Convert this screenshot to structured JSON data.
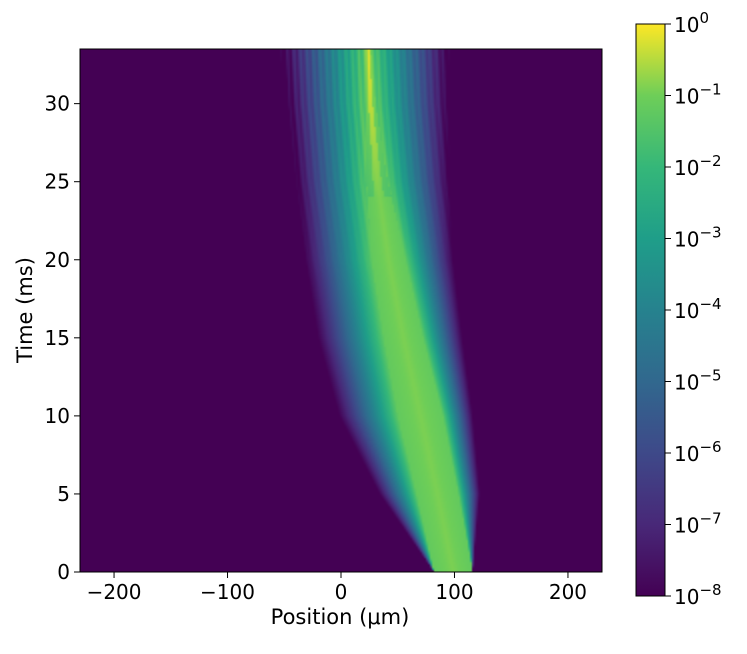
{
  "chart_data": {
    "type": "heatmap",
    "title": "",
    "xlabel": "Position (μm)",
    "ylabel": "Time (ms)",
    "xlim": [
      -230,
      230
    ],
    "ylim": [
      0,
      33.5
    ],
    "x_ticks": [
      {
        "value": -200,
        "label": "−200"
      },
      {
        "value": -100,
        "label": "−100"
      },
      {
        "value": 0,
        "label": "0"
      },
      {
        "value": 100,
        "label": "100"
      },
      {
        "value": 200,
        "label": "200"
      }
    ],
    "y_ticks": [
      {
        "value": 0,
        "label": "0"
      },
      {
        "value": 5,
        "label": "5"
      },
      {
        "value": 10,
        "label": "10"
      },
      {
        "value": 15,
        "label": "15"
      },
      {
        "value": 20,
        "label": "20"
      },
      {
        "value": 25,
        "label": "25"
      },
      {
        "value": 30,
        "label": "30"
      }
    ],
    "colormap": "viridis",
    "color_scale": "log",
    "color_range": [
      1e-08,
      1
    ],
    "colorbar_ticks": [
      {
        "exp": -8,
        "base": "10",
        "sup": "−8"
      },
      {
        "exp": -7,
        "base": "10",
        "sup": "−7"
      },
      {
        "exp": -6,
        "base": "10",
        "sup": "−6"
      },
      {
        "exp": -5,
        "base": "10",
        "sup": "−5"
      },
      {
        "exp": -4,
        "base": "10",
        "sup": "−4"
      },
      {
        "exp": -3,
        "base": "10",
        "sup": "−3"
      },
      {
        "exp": -2,
        "base": "10",
        "sup": "−2"
      },
      {
        "exp": -1,
        "base": "10",
        "sup": "−1"
      },
      {
        "exp": 0,
        "base": "10",
        "sup": "0"
      }
    ],
    "packet_center": [
      {
        "t": 0,
        "x": 99
      },
      {
        "t": 5,
        "x": 85
      },
      {
        "t": 10,
        "x": 70
      },
      {
        "t": 15,
        "x": 55
      },
      {
        "t": 20,
        "x": 42
      },
      {
        "t": 25,
        "x": 32
      },
      {
        "t": 30,
        "x": 26
      },
      {
        "t": 33.5,
        "x": 24
      }
    ],
    "core_halfwidth": [
      {
        "t": 0,
        "w": 17
      },
      {
        "t": 10,
        "w": 20
      },
      {
        "t": 20,
        "w": 15
      },
      {
        "t": 28,
        "w": 6
      },
      {
        "t": 33.5,
        "w": 2
      }
    ],
    "left_tail_edge": [
      {
        "t": 0,
        "x": 82
      },
      {
        "t": 5,
        "x": 33
      },
      {
        "t": 10,
        "x": -3
      },
      {
        "t": 15,
        "x": -22
      },
      {
        "t": 20,
        "x": -33
      },
      {
        "t": 25,
        "x": -40
      },
      {
        "t": 30,
        "x": -47
      },
      {
        "t": 33.5,
        "x": -52
      }
    ],
    "right_tail_edge": [
      {
        "t": 0,
        "x": 116
      },
      {
        "t": 5,
        "x": 123
      },
      {
        "t": 10,
        "x": 117
      },
      {
        "t": 15,
        "x": 108
      },
      {
        "t": 20,
        "x": 100
      },
      {
        "t": 25,
        "x": 96
      },
      {
        "t": 30,
        "x": 95
      },
      {
        "t": 33.5,
        "x": 95
      }
    ]
  }
}
